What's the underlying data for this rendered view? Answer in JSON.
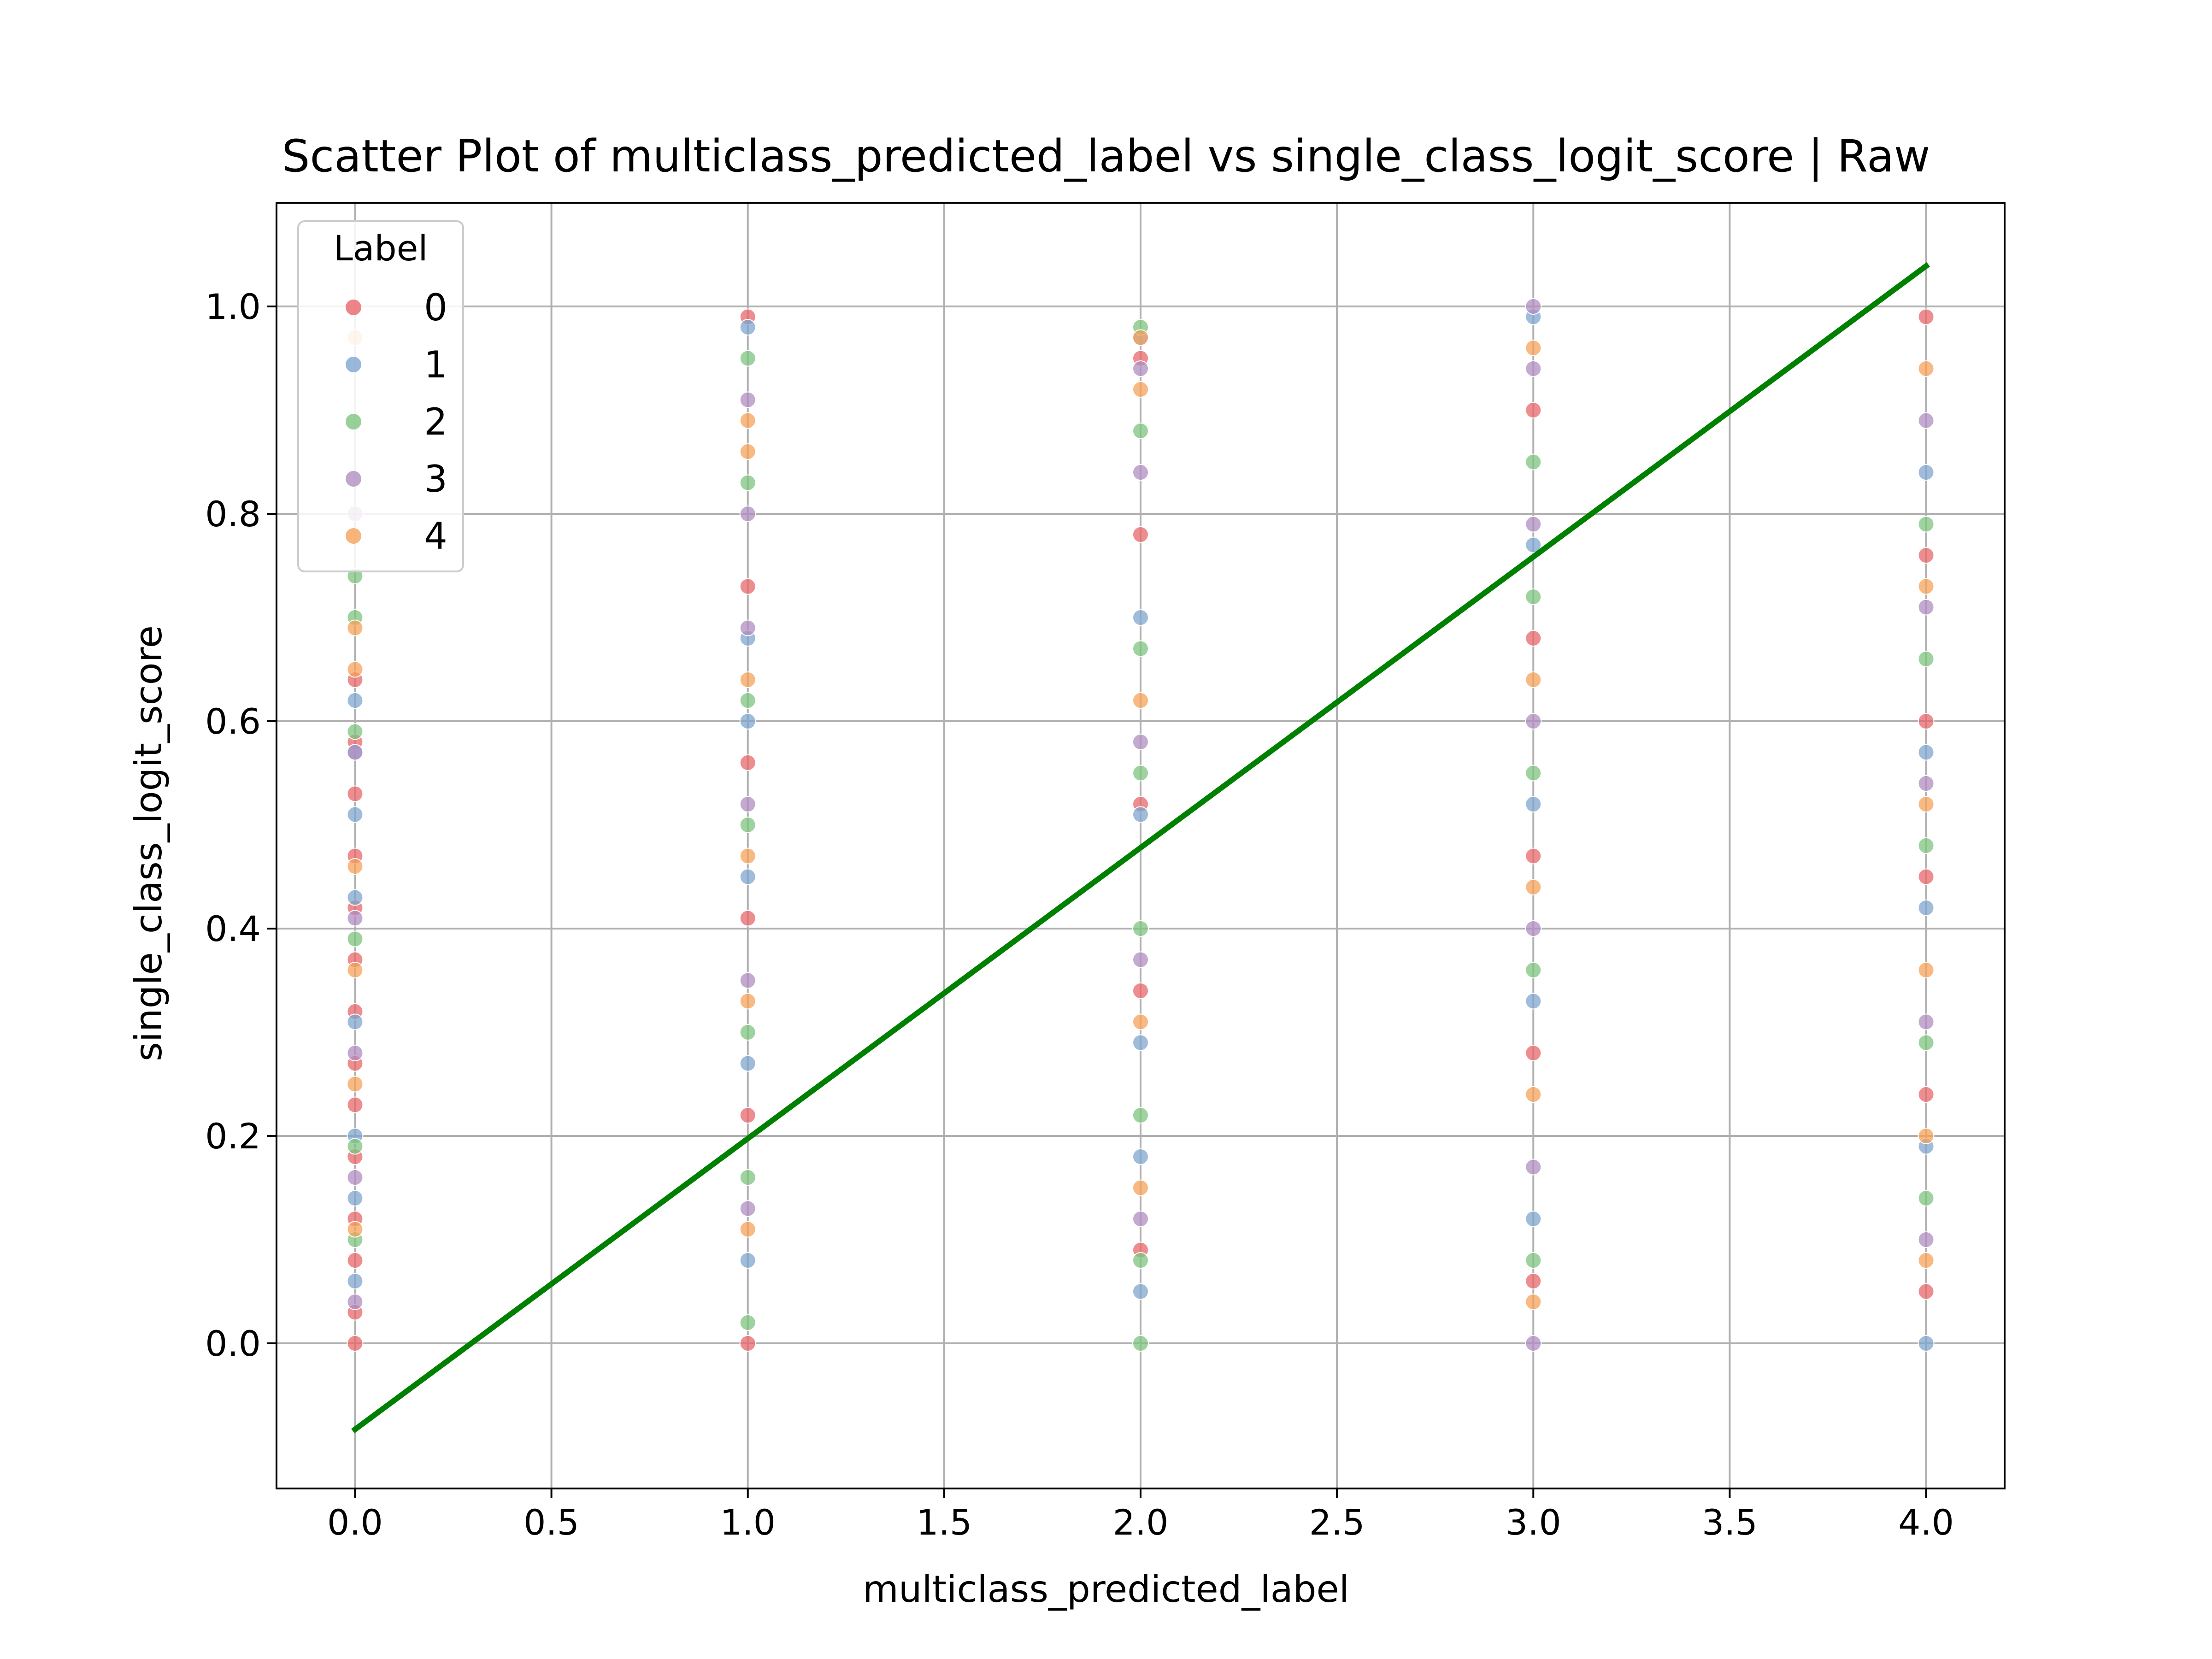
{
  "chart_data": {
    "type": "scatter",
    "title": "Scatter Plot of multiclass_predicted_label vs single_class_logit_score | Raw",
    "xlabel": "multiclass_predicted_label",
    "ylabel": "single_class_logit_score",
    "xlim": [
      -0.2,
      4.2
    ],
    "ylim": [
      -0.14,
      1.1
    ],
    "xticks": [
      0.0,
      0.5,
      1.0,
      1.5,
      2.0,
      2.5,
      3.0,
      3.5,
      4.0
    ],
    "xtick_labels": [
      "0.0",
      "0.5",
      "1.0",
      "1.5",
      "2.0",
      "2.5",
      "3.0",
      "3.5",
      "4.0"
    ],
    "yticks": [
      0.0,
      0.2,
      0.4,
      0.6,
      0.8,
      1.0
    ],
    "ytick_labels": [
      "0.0",
      "0.2",
      "0.4",
      "0.6",
      "0.8",
      "1.0"
    ],
    "grid": true,
    "legend": {
      "title": "Label",
      "placement": "top-left",
      "entries": [
        {
          "label": "0",
          "color": "#e8676a"
        },
        {
          "label": "1",
          "color": "#7fa6cf"
        },
        {
          "label": "2",
          "color": "#7ec480"
        },
        {
          "label": "3",
          "color": "#b08ec0"
        },
        {
          "label": "4",
          "color": "#f6a25a"
        }
      ]
    },
    "series": [
      {
        "name": "0",
        "color": "#e8676a",
        "x": [
          0,
          0,
          0,
          0,
          0,
          0,
          0,
          0,
          0,
          0,
          0,
          0,
          0,
          0,
          1,
          1,
          1,
          1,
          1,
          1,
          2,
          2,
          2,
          2,
          2,
          3,
          3,
          3,
          3,
          3,
          4,
          4,
          4,
          4,
          4,
          4
        ],
        "y": [
          0.0,
          0.03,
          0.08,
          0.12,
          0.18,
          0.23,
          0.27,
          0.32,
          0.37,
          0.42,
          0.47,
          0.53,
          0.58,
          0.64,
          0.0,
          0.22,
          0.41,
          0.56,
          0.73,
          0.99,
          0.09,
          0.34,
          0.52,
          0.78,
          0.95,
          0.06,
          0.28,
          0.47,
          0.68,
          0.9,
          0.05,
          0.24,
          0.45,
          0.6,
          0.76,
          0.99
        ]
      },
      {
        "name": "1",
        "color": "#7fa6cf",
        "x": [
          0,
          0,
          0,
          0,
          0,
          0,
          0,
          0,
          1,
          1,
          1,
          1,
          1,
          1,
          2,
          2,
          2,
          2,
          2,
          2,
          3,
          3,
          3,
          3,
          3,
          4,
          4,
          4,
          4,
          4
        ],
        "y": [
          0.06,
          0.14,
          0.2,
          0.31,
          0.43,
          0.51,
          0.57,
          0.62,
          0.08,
          0.27,
          0.45,
          0.6,
          0.68,
          0.98,
          0.05,
          0.18,
          0.29,
          0.51,
          0.7,
          0.97,
          0.12,
          0.33,
          0.52,
          0.77,
          0.99,
          0.0,
          0.19,
          0.42,
          0.57,
          0.84
        ]
      },
      {
        "name": "2",
        "color": "#7ec480",
        "x": [
          0,
          0,
          0,
          0,
          0,
          0,
          1,
          1,
          1,
          1,
          1,
          1,
          1,
          2,
          2,
          2,
          2,
          2,
          2,
          2,
          2,
          3,
          3,
          3,
          3,
          3,
          4,
          4,
          4,
          4,
          4
        ],
        "y": [
          0.1,
          0.19,
          0.39,
          0.59,
          0.7,
          0.74,
          0.02,
          0.16,
          0.3,
          0.5,
          0.62,
          0.83,
          0.95,
          0.0,
          0.08,
          0.22,
          0.4,
          0.55,
          0.67,
          0.88,
          0.98,
          0.08,
          0.36,
          0.55,
          0.72,
          0.85,
          0.14,
          0.29,
          0.48,
          0.66,
          0.79
        ]
      },
      {
        "name": "3",
        "color": "#b08ec0",
        "x": [
          0,
          0,
          0,
          0,
          0,
          0,
          1,
          1,
          1,
          1,
          1,
          1,
          2,
          2,
          2,
          2,
          2,
          3,
          3,
          3,
          3,
          3,
          3,
          3,
          4,
          4,
          4,
          4,
          4
        ],
        "y": [
          0.04,
          0.16,
          0.28,
          0.41,
          0.57,
          0.8,
          0.13,
          0.35,
          0.52,
          0.69,
          0.8,
          0.91,
          0.12,
          0.37,
          0.58,
          0.84,
          0.94,
          0.0,
          0.17,
          0.4,
          0.6,
          0.79,
          0.94,
          1.0,
          0.1,
          0.31,
          0.54,
          0.71,
          0.89
        ]
      },
      {
        "name": "4",
        "color": "#f6a25a",
        "x": [
          0,
          0,
          0,
          0,
          0,
          0,
          0,
          1,
          1,
          1,
          1,
          1,
          1,
          2,
          2,
          2,
          2,
          2,
          3,
          3,
          3,
          3,
          3,
          4,
          4,
          4,
          4,
          4,
          4
        ],
        "y": [
          0.11,
          0.25,
          0.36,
          0.46,
          0.65,
          0.69,
          0.97,
          0.11,
          0.33,
          0.47,
          0.64,
          0.86,
          0.89,
          0.15,
          0.31,
          0.62,
          0.92,
          0.97,
          0.04,
          0.24,
          0.44,
          0.64,
          0.96,
          0.08,
          0.2,
          0.36,
          0.52,
          0.73,
          0.94
        ]
      }
    ],
    "fit_line": {
      "color": "#008000",
      "x": [
        0.0,
        4.0
      ],
      "y": [
        -0.083,
        1.039
      ]
    }
  }
}
